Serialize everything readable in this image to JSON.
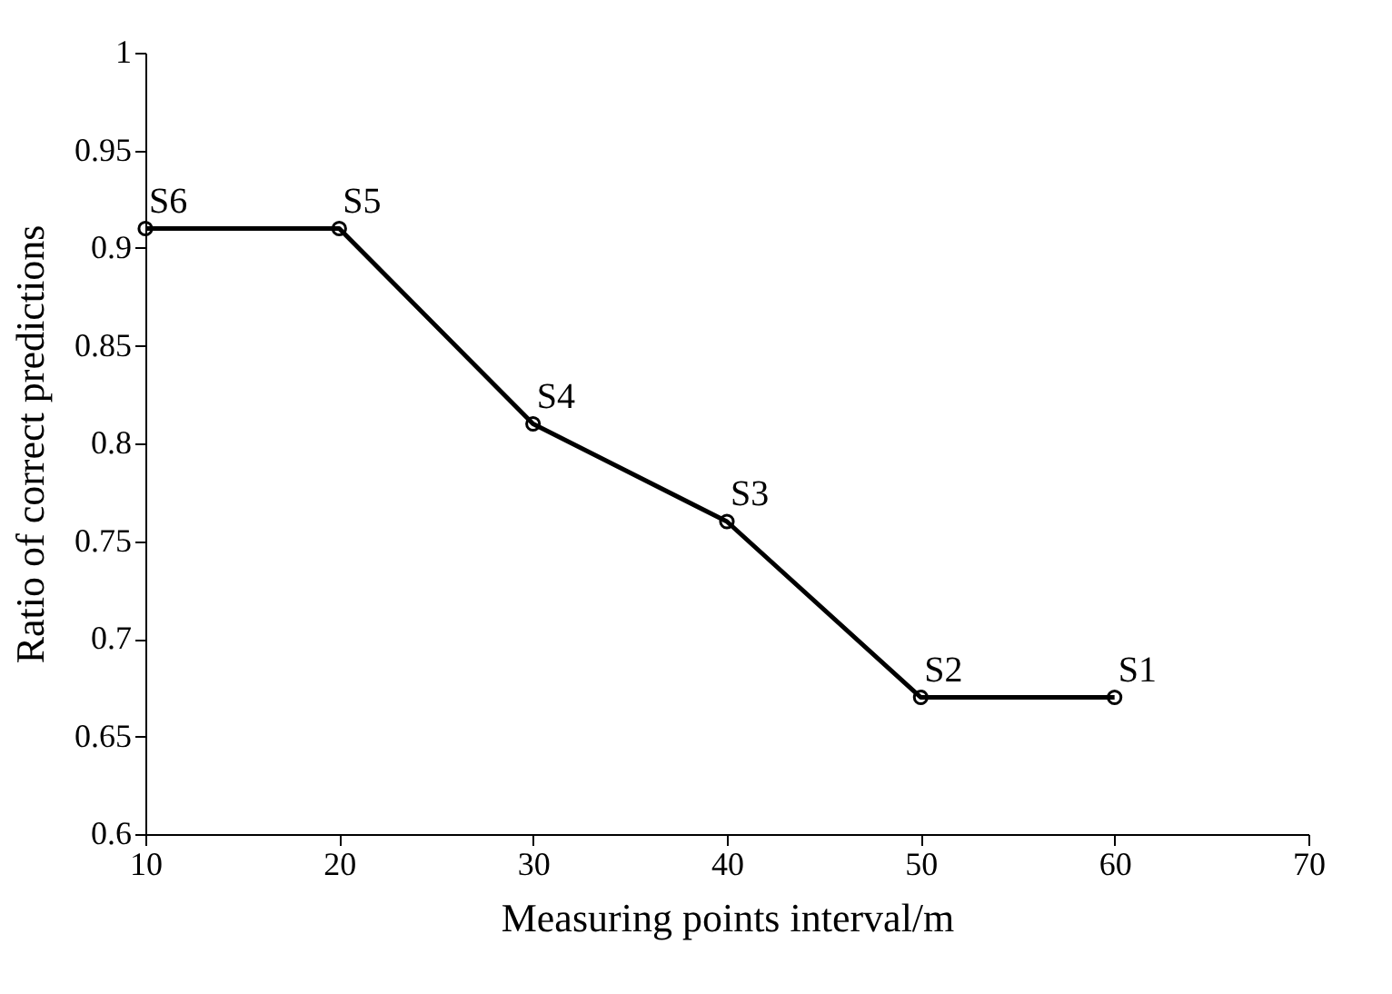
{
  "chart_data": {
    "type": "line",
    "xlabel": "Measuring points interval/m",
    "ylabel": "Ratio of correct predictions",
    "x": [
      10,
      20,
      30,
      40,
      50,
      60
    ],
    "series": [
      {
        "color": "#000000",
        "values": [
          0.91,
          0.91,
          0.81,
          0.76,
          0.67,
          0.67
        ]
      }
    ],
    "xlim": [
      10,
      70
    ],
    "xticks": [
      10,
      20,
      30,
      40,
      50,
      60,
      70
    ],
    "ylim": [
      0.6,
      1
    ],
    "yticks": [
      {
        "value": 0.6,
        "label": "0.6"
      },
      {
        "value": 0.65,
        "label": "0.65"
      },
      {
        "value": 0.7,
        "label": "0.7"
      },
      {
        "value": 0.75,
        "label": "0.75"
      },
      {
        "value": 0.8,
        "label": "0.8"
      },
      {
        "value": 0.85,
        "label": "0.85"
      },
      {
        "value": 0.9,
        "label": "0.9"
      },
      {
        "value": 0.95,
        "label": "0.95"
      },
      {
        "value": 1,
        "label": "1"
      }
    ],
    "marker": "circle",
    "line_style": "solid",
    "annotations": [
      {
        "text": "S6",
        "x": 10,
        "y": 0.91
      },
      {
        "text": "S5",
        "x": 20,
        "y": 0.91
      },
      {
        "text": "S4",
        "x": 30,
        "y": 0.81
      },
      {
        "text": "S3",
        "x": 40,
        "y": 0.76
      },
      {
        "text": "S2",
        "x": 50,
        "y": 0.67
      },
      {
        "text": "S1",
        "x": 60,
        "y": 0.67
      }
    ]
  }
}
